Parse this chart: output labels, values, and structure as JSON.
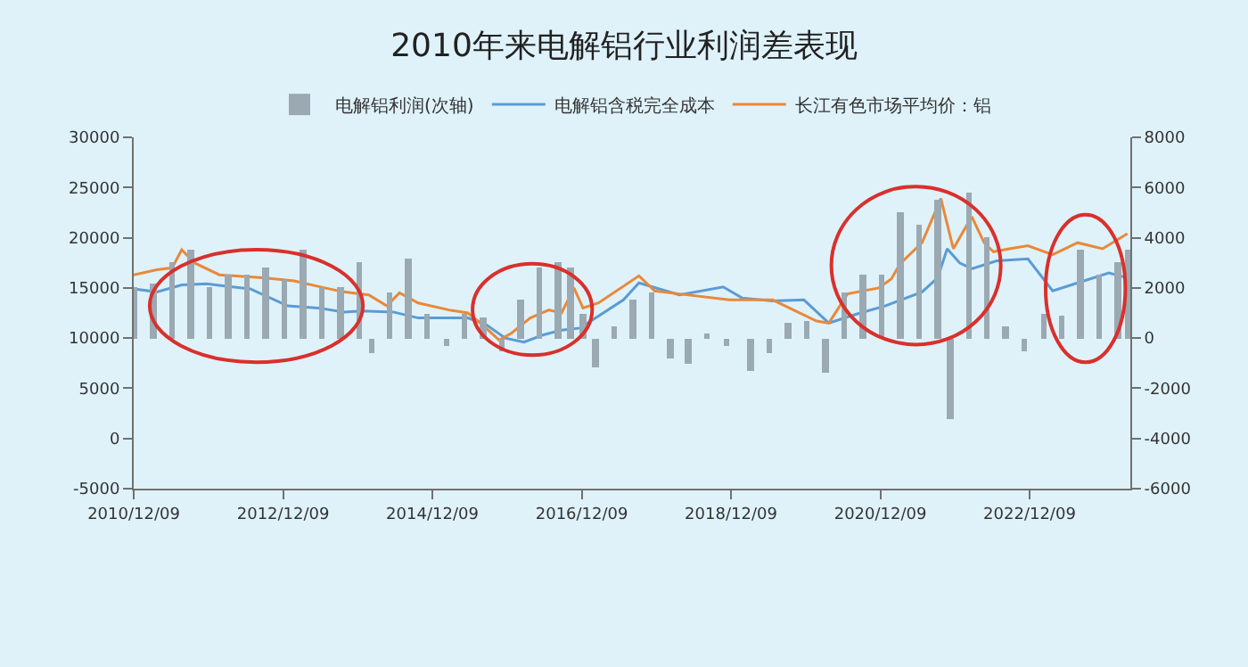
{
  "chart_data": {
    "type": "line",
    "title": "2010年来电解铝行业利润差表现",
    "series": [
      {
        "name": "电解铝利润(次轴)",
        "type": "bar",
        "axis": "y2",
        "color": "#9aa9b2",
        "x": [
          "2010-12-15",
          "2011-03-15",
          "2011-06-15",
          "2011-09-15",
          "2011-12-15",
          "2012-03-15",
          "2012-06-15",
          "2012-09-15",
          "2012-12-15",
          "2013-03-15",
          "2013-06-15",
          "2013-09-15",
          "2013-12-15",
          "2014-02-15",
          "2014-05-15",
          "2014-08-15",
          "2014-11-15",
          "2015-02-15",
          "2015-05-15",
          "2015-08-15",
          "2015-11-15",
          "2016-02-15",
          "2016-05-15",
          "2016-08-15",
          "2016-10-15",
          "2016-12-15",
          "2017-02-15",
          "2017-05-15",
          "2017-08-15",
          "2017-11-15",
          "2018-02-15",
          "2018-05-15",
          "2018-08-15",
          "2018-11-15",
          "2019-03-15",
          "2019-06-15",
          "2019-09-15",
          "2019-12-15",
          "2020-03-15",
          "2020-06-15",
          "2020-09-15",
          "2020-12-15",
          "2021-03-15",
          "2021-06-15",
          "2021-09-15",
          "2021-11-15",
          "2022-02-15",
          "2022-05-15",
          "2022-08-15",
          "2022-11-15",
          "2023-02-15",
          "2023-05-15",
          "2023-08-15",
          "2023-11-15",
          "2024-02-15",
          "2024-04-01"
        ],
        "values": [
          2000,
          2200,
          3000,
          3500,
          2000,
          2500,
          2500,
          2800,
          2300,
          3500,
          2000,
          2000,
          3000,
          -600,
          1800,
          3200,
          1000,
          -300,
          1000,
          800,
          -500,
          1500,
          2800,
          3000,
          2800,
          1000,
          -1200,
          500,
          1500,
          1800,
          -800,
          -1000,
          200,
          -300,
          -1300,
          -600,
          600,
          700,
          -1400,
          1800,
          2500,
          2500,
          5000,
          4500,
          5500,
          -3200,
          5800,
          4000,
          500,
          -500,
          1000,
          900,
          3500,
          2500,
          3000,
          3500
        ]
      },
      {
        "name": "电解铝含税完全成本",
        "color": "#5b9bd5",
        "x": [
          "2010-12-09",
          "2011-04-01",
          "2011-08-01",
          "2011-12-01",
          "2012-07-01",
          "2013-01-01",
          "2013-06-01",
          "2013-10-01",
          "2014-01-01",
          "2014-06-01",
          "2014-10-01",
          "2015-06-01",
          "2015-09-01",
          "2015-12-01",
          "2016-03-01",
          "2016-06-01",
          "2016-09-01",
          "2016-12-01",
          "2017-07-01",
          "2017-09-15",
          "2018-04-01",
          "2018-11-01",
          "2019-02-01",
          "2019-07-01",
          "2019-12-01",
          "2020-04-01",
          "2020-09-01",
          "2021-01-01",
          "2021-07-01",
          "2021-09-15",
          "2021-11-01",
          "2022-01-01",
          "2022-03-01",
          "2022-07-01",
          "2022-12-01",
          "2023-04-01",
          "2023-08-01",
          "2024-01-01",
          "2024-04-01"
        ],
        "values": [
          14900,
          14600,
          15300,
          15400,
          14900,
          13200,
          13000,
          12600,
          12700,
          12600,
          12000,
          12000,
          11300,
          10000,
          9600,
          10300,
          10800,
          11000,
          13800,
          15500,
          14300,
          15100,
          14000,
          13700,
          13800,
          11500,
          12500,
          13200,
          14600,
          16000,
          18900,
          17500,
          16900,
          17700,
          17900,
          14700,
          15500,
          16500,
          16000
        ]
      },
      {
        "name": "长江有色市场平均价：铝",
        "color": "#e9883a",
        "x": [
          "2010-12-09",
          "2011-04-01",
          "2011-06-15",
          "2011-08-01",
          "2011-10-01",
          "2012-02-01",
          "2012-09-01",
          "2013-02-01",
          "2013-07-01",
          "2013-10-01",
          "2014-02-01",
          "2014-05-01",
          "2014-07-01",
          "2014-10-01",
          "2015-03-01",
          "2015-06-01",
          "2015-08-01",
          "2015-11-01",
          "2016-01-01",
          "2016-04-01",
          "2016-07-01",
          "2016-09-01",
          "2016-11-01",
          "2016-12-15",
          "2017-03-01",
          "2017-09-15",
          "2017-12-01",
          "2018-04-01",
          "2018-12-01",
          "2019-07-01",
          "2020-02-01",
          "2020-04-01",
          "2020-07-01",
          "2020-12-01",
          "2021-02-01",
          "2021-03-15",
          "2021-07-01",
          "2021-10-01",
          "2021-12-01",
          "2022-03-01",
          "2022-05-01",
          "2022-06-15",
          "2022-09-01",
          "2022-12-01",
          "2023-04-01",
          "2023-08-01",
          "2023-12-01",
          "2024-04-01"
        ],
        "values": [
          16300,
          16800,
          17000,
          18800,
          17500,
          16300,
          16000,
          15700,
          15000,
          14600,
          14300,
          13200,
          14500,
          13500,
          12800,
          12500,
          11500,
          9800,
          10500,
          12000,
          12800,
          12500,
          15000,
          13000,
          13500,
          16200,
          14700,
          14400,
          13800,
          13800,
          11700,
          11500,
          14400,
          15000,
          15900,
          17400,
          19500,
          23900,
          18900,
          22100,
          19500,
          18600,
          18900,
          19200,
          18300,
          19500,
          18900,
          20400
        ]
      }
    ],
    "xlim": [
      "2010-12-09",
      "2024-04-15"
    ],
    "xticks": [
      {
        "value": "2010-12-09",
        "label": "2010/12/09"
      },
      {
        "value": "2012-12-09",
        "label": "2012/12/09"
      },
      {
        "value": "2014-12-09",
        "label": "2014/12/09"
      },
      {
        "value": "2016-12-09",
        "label": "2016/12/09"
      },
      {
        "value": "2018-12-09",
        "label": "2018/12/09"
      },
      {
        "value": "2020-12-09",
        "label": "2020/12/09"
      },
      {
        "value": "2022-12-09",
        "label": "2022/12/09"
      }
    ],
    "ylim": [
      -5000,
      30000
    ],
    "yticks": [
      -5000,
      0,
      5000,
      10000,
      15000,
      20000,
      25000,
      30000
    ],
    "y2lim": [
      -6000,
      8000
    ],
    "y2ticks": [
      -6000,
      -4000,
      -2000,
      0,
      2000,
      4000,
      6000,
      8000
    ],
    "legend": "top",
    "grid": false,
    "marker": "none",
    "line_style": "solid"
  }
}
